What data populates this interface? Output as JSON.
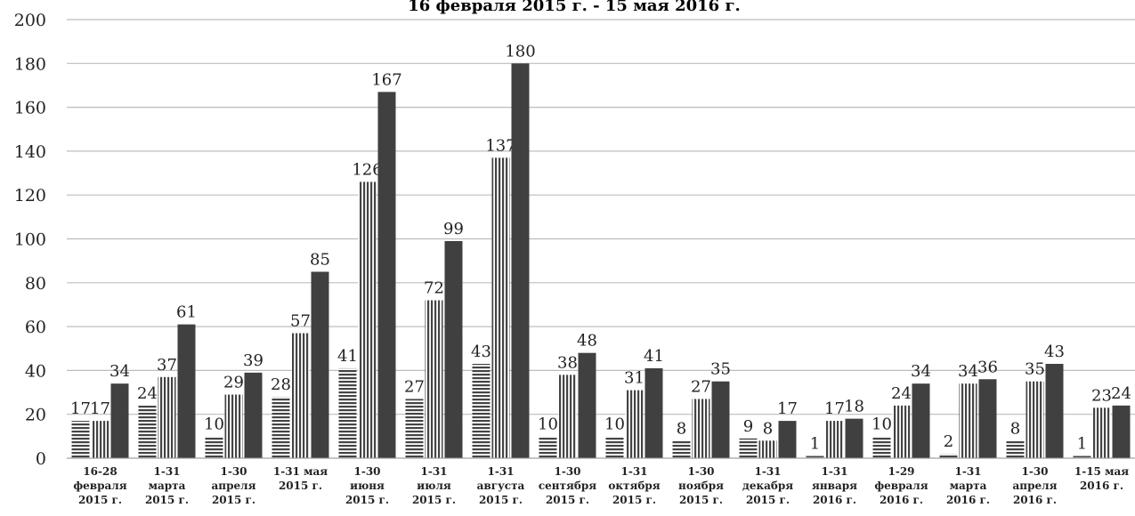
{
  "chart_data": {
    "type": "bar",
    "title": "16 февраля 2015 г. - 15 мая 2016 г.",
    "categories": [
      "16-28\nфевраля\n2015 г.",
      "1-31\nмарта\n2015 г.",
      "1-30\nапреля\n2015 г.",
      "1-31 мая\n2015 г.",
      "1-30\nиюня\n2015 г.",
      "1-31\nиюля\n2015 г.",
      "1-31\nавгуста\n2015 г.",
      "1-30\nсентября\n2015 г.",
      "1-31\nоктября\n2015 г.",
      "1-30\nноября\n2015 г.",
      "1-31\nдекабря\n2015 г.",
      "1-31\nянваря\n2016 г.",
      "1-29\nфевраля\n2016 г.",
      "1-31\nмарта\n2016 г.",
      "1-30\nапреля\n2016 г.",
      "1-15 мая\n2016 г."
    ],
    "series": [
      {
        "color": "#444444",
        "pattern": "horizontal",
        "values": [
          17,
          24,
          10,
          28,
          41,
          27,
          43,
          10,
          10,
          8,
          9,
          1,
          10,
          2,
          8,
          1
        ]
      },
      {
        "color": "#444444",
        "pattern": "vertical",
        "values": [
          17,
          37,
          29,
          57,
          126,
          72,
          137,
          38,
          31,
          27,
          8,
          17,
          24,
          34,
          35,
          23
        ]
      },
      {
        "color": "#404040",
        "pattern": "solid",
        "values": [
          34,
          61,
          39,
          85,
          167,
          99,
          180,
          48,
          41,
          35,
          17,
          18,
          34,
          36,
          43,
          24
        ]
      }
    ],
    "ylim": [
      0,
      200
    ],
    "yticks": [
      0,
      20,
      40,
      60,
      80,
      100,
      120,
      140,
      160,
      180,
      200
    ],
    "grid": true
  }
}
